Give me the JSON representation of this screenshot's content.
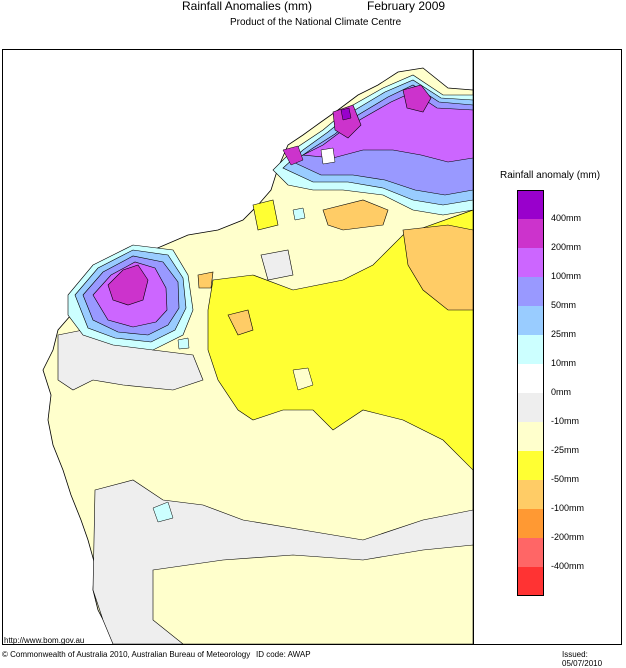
{
  "header": {
    "title": "Rainfall Anomalies (mm)",
    "period": "February 2009",
    "subtitle": "Product of the National Climate Centre"
  },
  "legend": {
    "title": "Rainfall anomaly (mm)",
    "classes": [
      {
        "label": "400mm",
        "color": "#9900cc"
      },
      {
        "label": "200mm",
        "color": "#cc33cc"
      },
      {
        "label": "100mm",
        "color": "#cc66ff"
      },
      {
        "label": "50mm",
        "color": "#9999ff"
      },
      {
        "label": "25mm",
        "color": "#99ccff"
      },
      {
        "label": "10mm",
        "color": "#ccffff"
      },
      {
        "label": "0mm",
        "color": "#ffffff"
      },
      {
        "label": "-10mm",
        "color": "#eeeeee"
      },
      {
        "label": "-25mm",
        "color": "#ffffcc"
      },
      {
        "label": "-50mm",
        "color": "#ffff33"
      },
      {
        "label": "-100mm",
        "color": "#ffcc66"
      },
      {
        "label": "-200mm",
        "color": "#ff9933"
      },
      {
        "label": "-400mm",
        "color": "#ff6666"
      },
      {
        "label": "",
        "color": "#ff3333"
      }
    ]
  },
  "footer": {
    "url": "http://www.bom.gov.au",
    "copyright": "© Commonwealth of Australia 2010, Australian Bureau of Meteorology",
    "id_code": "ID code: AWAP",
    "issued": "Issued: 05/07/2010"
  }
}
